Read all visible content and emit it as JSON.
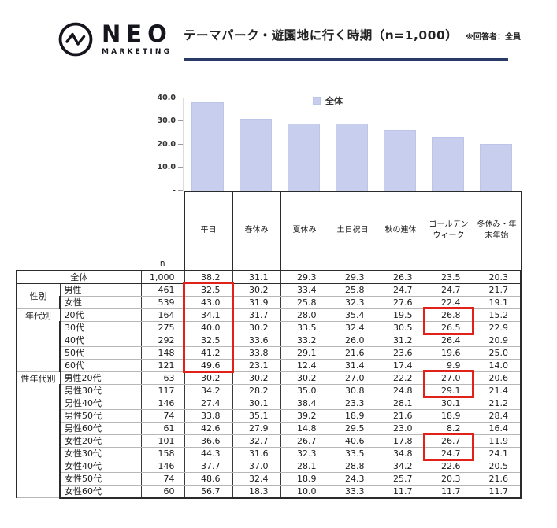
{
  "header": {
    "logo_name": "NEO",
    "logo_sub": "MARKETING",
    "title": "テーマパーク・遊園地に行く時期（n=1,000）",
    "note": "※回答者：全員"
  },
  "colors": {
    "bar": "#c7ceee",
    "title_underline": "#2a3a66",
    "highlight_red": "#e2211a",
    "logo": "#15151d"
  },
  "chart_data": {
    "type": "bar",
    "title": "",
    "legend": "全体",
    "legend_position": "top-center",
    "categories": [
      "平日",
      "春休み",
      "夏休み",
      "土日祝日",
      "秋の連休",
      "ゴールデンウィーク",
      "冬休み・年末年始"
    ],
    "values": [
      38.2,
      31.1,
      29.3,
      29.3,
      26.3,
      23.5,
      20.3
    ],
    "ylim": [
      0,
      40
    ],
    "yticks": [
      "40.0",
      "30.0",
      "20.0",
      "10.0",
      "-"
    ],
    "grid": false
  },
  "table": {
    "n_header": "n",
    "columns": [
      "平日",
      "春休み",
      "夏休み",
      "土日祝日",
      "秋の連休",
      "ゴールデンウィーク",
      "冬休み・年末年始"
    ],
    "rows": [
      {
        "label": "全体",
        "merge_group": true,
        "n": "1,000",
        "values": [
          "38.2",
          "31.1",
          "29.3",
          "29.3",
          "26.3",
          "23.5",
          "20.3"
        ]
      },
      {
        "group": "性別",
        "group_span": 2,
        "section": true,
        "label": "男性",
        "n": "461",
        "values": [
          "32.5",
          "30.2",
          "33.4",
          "25.8",
          "24.7",
          "24.7",
          "21.7"
        ]
      },
      {
        "label": "女性",
        "n": "539",
        "values": [
          "43.0",
          "31.9",
          "25.8",
          "32.3",
          "27.6",
          "22.4",
          "19.1"
        ]
      },
      {
        "group": "年代別",
        "group_span": 5,
        "section": true,
        "label": "20代",
        "n": "164",
        "values": [
          "34.1",
          "31.7",
          "28.0",
          "35.4",
          "19.5",
          "26.8",
          "15.2"
        ]
      },
      {
        "label": "30代",
        "n": "275",
        "values": [
          "40.0",
          "30.2",
          "33.5",
          "32.4",
          "30.5",
          "26.5",
          "22.9"
        ]
      },
      {
        "label": "40代",
        "n": "292",
        "values": [
          "32.5",
          "33.6",
          "33.2",
          "26.0",
          "31.2",
          "26.4",
          "20.9"
        ]
      },
      {
        "label": "50代",
        "n": "148",
        "values": [
          "41.2",
          "33.8",
          "29.1",
          "21.6",
          "23.6",
          "19.6",
          "25.0"
        ]
      },
      {
        "label": "60代",
        "n": "121",
        "values": [
          "49.6",
          "23.1",
          "12.4",
          "31.4",
          "17.4",
          "9.9",
          "14.0"
        ]
      },
      {
        "group": "性年代別",
        "group_span": 10,
        "section": true,
        "label": "男性20代",
        "n": "63",
        "values": [
          "30.2",
          "30.2",
          "30.2",
          "27.0",
          "22.2",
          "27.0",
          "20.6"
        ]
      },
      {
        "label": "男性30代",
        "n": "117",
        "values": [
          "34.2",
          "28.2",
          "35.0",
          "30.8",
          "24.8",
          "29.1",
          "21.4"
        ]
      },
      {
        "label": "男性40代",
        "n": "146",
        "values": [
          "27.4",
          "30.1",
          "38.4",
          "23.3",
          "28.1",
          "30.1",
          "21.2"
        ]
      },
      {
        "label": "男性50代",
        "n": "74",
        "values": [
          "33.8",
          "35.1",
          "39.2",
          "18.9",
          "21.6",
          "18.9",
          "28.4"
        ]
      },
      {
        "label": "男性60代",
        "n": "61",
        "values": [
          "42.6",
          "27.9",
          "14.8",
          "29.5",
          "23.0",
          "8.2",
          "16.4"
        ]
      },
      {
        "label": "女性20代",
        "n": "101",
        "values": [
          "36.6",
          "32.7",
          "26.7",
          "40.6",
          "17.8",
          "26.7",
          "11.9"
        ]
      },
      {
        "label": "女性30代",
        "n": "158",
        "values": [
          "44.3",
          "31.6",
          "32.3",
          "33.5",
          "34.8",
          "24.7",
          "24.1"
        ]
      },
      {
        "label": "女性40代",
        "n": "146",
        "values": [
          "37.7",
          "37.0",
          "28.1",
          "28.8",
          "34.2",
          "22.6",
          "20.5"
        ]
      },
      {
        "label": "女性50代",
        "n": "74",
        "values": [
          "48.6",
          "32.4",
          "18.9",
          "24.3",
          "25.7",
          "20.3",
          "21.6"
        ]
      },
      {
        "label": "女性60代",
        "n": "60",
        "values": [
          "56.7",
          "18.3",
          "10.0",
          "33.3",
          "11.7",
          "11.7",
          "11.7"
        ]
      }
    ],
    "highlights": [
      {
        "column": "平日",
        "from": "男性",
        "to": "60代"
      },
      {
        "column": "ゴールデンウィーク",
        "from": "20代",
        "to": "30代"
      },
      {
        "column": "ゴールデンウィーク",
        "from": "男性20代",
        "to": "男性30代"
      },
      {
        "column": "ゴールデンウィーク",
        "from": "女性20代",
        "to": "女性30代"
      }
    ]
  }
}
